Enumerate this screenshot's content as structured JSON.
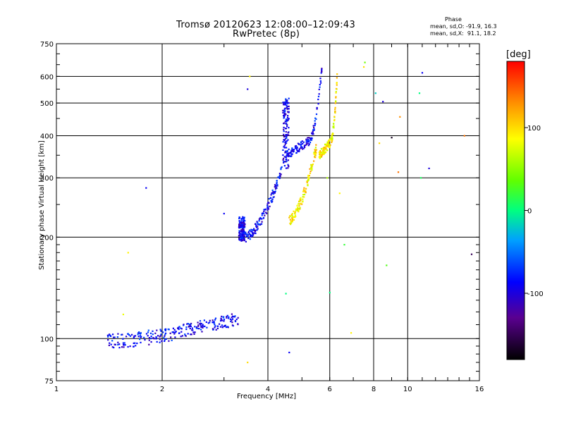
{
  "chart_data": {
    "type": "scatter",
    "title": "Tromsø 20120623 12:08:00–12:09:43",
    "subtitle": "RwPretec (8p)",
    "xlabel": "Frequency [MHz]",
    "ylabel": "Stationary phase Virtual Height [km]",
    "x_scale": "log",
    "y_scale": "log",
    "xlim": [
      1,
      16
    ],
    "ylim": [
      75,
      750
    ],
    "x_ticks": [
      1,
      2,
      4,
      6,
      8,
      10,
      16
    ],
    "y_ticks": [
      75,
      100,
      200,
      300,
      400,
      500,
      600,
      750
    ],
    "grid": true,
    "phase_legend": {
      "heading": "Phase",
      "line_o": "mean, sd,O: -91.9, 16.3",
      "line_x": "mean, sd,X:  91.1, 18.2"
    },
    "colorbar": {
      "title": "[deg]",
      "range": [
        -180,
        180
      ],
      "ticks": [
        100,
        0,
        -100
      ]
    },
    "traces": [
      {
        "f_start": 1.4,
        "f_end": 3.3,
        "h_start": 98,
        "h_end": 115,
        "phase": -88,
        "kind": "E-layer"
      },
      {
        "f_start": 3.3,
        "f_end": 3.45,
        "h_start": 195,
        "h_end": 230,
        "phase": -95,
        "kind": "F1 cusp"
      },
      {
        "f_start": 3.45,
        "f_end": 4.4,
        "h_start": 200,
        "h_end": 320,
        "phase": -90,
        "kind": "F1 O-trace"
      },
      {
        "f_start": 4.4,
        "f_end": 4.6,
        "h_start": 320,
        "h_end": 520,
        "phase": -92,
        "kind": "F1 critical"
      },
      {
        "f_start": 4.5,
        "f_end": 5.7,
        "h_start": 350,
        "h_end": 640,
        "phase": -90,
        "kind": "F2 O-trace"
      },
      {
        "f_start": 4.6,
        "f_end": 5.5,
        "h_start": 225,
        "h_end": 370,
        "phase": 95,
        "kind": "X-trace"
      },
      {
        "f_start": 5.6,
        "f_end": 6.3,
        "h_start": 350,
        "h_end": 610,
        "phase": 92,
        "kind": "F2 X-trace"
      }
    ],
    "scattered_points": [
      [
        1.8,
        280,
        -90
      ],
      [
        1.6,
        180,
        90
      ],
      [
        1.55,
        118,
        80
      ],
      [
        3.5,
        550,
        -100
      ],
      [
        3.55,
        600,
        90
      ],
      [
        3.0,
        235,
        -90
      ],
      [
        3.5,
        85,
        100
      ],
      [
        4.6,
        91,
        -90
      ],
      [
        4.5,
        136,
        0
      ],
      [
        6.0,
        137,
        0
      ],
      [
        5.9,
        300,
        60
      ],
      [
        6.4,
        270,
        90
      ],
      [
        6.6,
        190,
        20
      ],
      [
        6.9,
        104,
        90
      ],
      [
        7.5,
        640,
        100
      ],
      [
        7.55,
        660,
        40
      ],
      [
        8.1,
        535,
        -20
      ],
      [
        8.5,
        505,
        -100
      ],
      [
        8.7,
        165,
        30
      ],
      [
        8.3,
        380,
        100
      ],
      [
        9.0,
        395,
        -170
      ],
      [
        9.5,
        455,
        130
      ],
      [
        9.4,
        312,
        140
      ],
      [
        10.8,
        535,
        0
      ],
      [
        10.9,
        300,
        10
      ],
      [
        11.0,
        615,
        -90
      ],
      [
        11.5,
        320,
        -100
      ],
      [
        14.5,
        400,
        140
      ],
      [
        15.2,
        178,
        -150
      ]
    ]
  }
}
